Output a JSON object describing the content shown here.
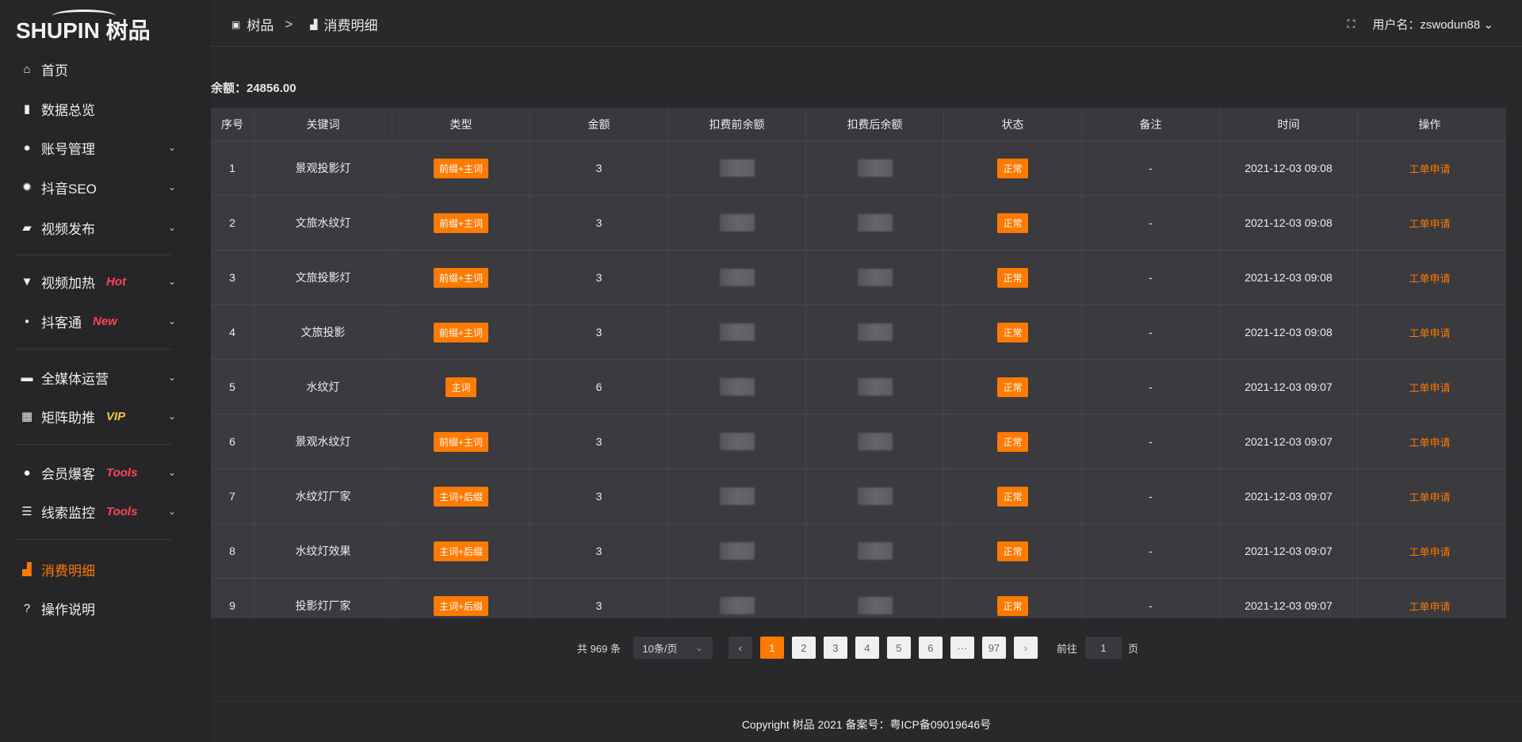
{
  "logo": {
    "text": "SHUPIN 树品"
  },
  "sidebar": {
    "items": [
      {
        "label": "首页",
        "icon": "home-icon",
        "glyph": "⌂"
      },
      {
        "label": "数据总览",
        "icon": "bar-chart-icon",
        "glyph": "▮"
      },
      {
        "label": "账号管理",
        "icon": "user-icon",
        "glyph": "●",
        "expandable": true
      },
      {
        "label": "抖音SEO",
        "icon": "gear-icon",
        "glyph": "✹",
        "expandable": true
      },
      {
        "label": "视频发布",
        "icon": "video-icon",
        "glyph": "▰",
        "expandable": true
      },
      {
        "label": "视频加热",
        "icon": "easel-icon",
        "glyph": "▼",
        "badge": "Hot",
        "badge_color": "#ff4457",
        "expandable": true
      },
      {
        "label": "抖客通",
        "icon": "chat-icon",
        "glyph": "▪",
        "badge": "New",
        "badge_color": "#ff4457",
        "expandable": true
      },
      {
        "label": "全媒体运营",
        "icon": "monitor-icon",
        "glyph": "▬",
        "expandable": true
      },
      {
        "label": "矩阵助推",
        "icon": "grid-icon",
        "glyph": "▦",
        "badge": "VIP",
        "badge_color": "#f7c24d",
        "expandable": true
      },
      {
        "label": "会员爆客",
        "icon": "user-icon",
        "glyph": "●",
        "badge": "Tools",
        "badge_color": "#ff4457",
        "expandable": true
      },
      {
        "label": "线索监控",
        "icon": "sliders-icon",
        "glyph": "☰",
        "badge": "Tools",
        "badge_color": "#ff4457",
        "expandable": true
      },
      {
        "label": "消费明细",
        "icon": "wallet-icon",
        "glyph": "▟",
        "active": true
      },
      {
        "label": "操作说明",
        "icon": "question-icon",
        "glyph": "?"
      }
    ]
  },
  "header": {
    "breadcrumb": [
      {
        "label": "树品",
        "icon": "chart-icon"
      },
      {
        "label": "消费明细",
        "icon": "wallet-icon"
      }
    ],
    "separator": ">",
    "username_label": "用户名：zswodun88"
  },
  "balance": "余额：24856.00",
  "table": {
    "columns": [
      "序号",
      "关键词",
      "类型",
      "金额",
      "扣费前余额",
      "扣费后余额",
      "状态",
      "备注",
      "时间",
      "操作"
    ],
    "rows": [
      {
        "no": "1",
        "keyword": "景观投影灯",
        "type": "前缀+主词",
        "amount": "3",
        "status": "正常",
        "note": "-",
        "time": "2021-12-03 09:08",
        "action": "工单申请"
      },
      {
        "no": "2",
        "keyword": "文旅水纹灯",
        "type": "前缀+主词",
        "amount": "3",
        "status": "正常",
        "note": "-",
        "time": "2021-12-03 09:08",
        "action": "工单申请"
      },
      {
        "no": "3",
        "keyword": "文旅投影灯",
        "type": "前缀+主词",
        "amount": "3",
        "status": "正常",
        "note": "-",
        "time": "2021-12-03 09:08",
        "action": "工单申请"
      },
      {
        "no": "4",
        "keyword": "文旅投影",
        "type": "前缀+主词",
        "amount": "3",
        "status": "正常",
        "note": "-",
        "time": "2021-12-03 09:08",
        "action": "工单申请"
      },
      {
        "no": "5",
        "keyword": "水纹灯",
        "type": "主词",
        "amount": "6",
        "status": "正常",
        "note": "-",
        "time": "2021-12-03 09:07",
        "action": "工单申请"
      },
      {
        "no": "6",
        "keyword": "景观水纹灯",
        "type": "前缀+主词",
        "amount": "3",
        "status": "正常",
        "note": "-",
        "time": "2021-12-03 09:07",
        "action": "工单申请"
      },
      {
        "no": "7",
        "keyword": "水纹灯厂家",
        "type": "主词+后缀",
        "amount": "3",
        "status": "正常",
        "note": "-",
        "time": "2021-12-03 09:07",
        "action": "工单申请"
      },
      {
        "no": "8",
        "keyword": "水纹灯效果",
        "type": "主词+后缀",
        "amount": "3",
        "status": "正常",
        "note": "-",
        "time": "2021-12-03 09:07",
        "action": "工单申请"
      },
      {
        "no": "9",
        "keyword": "投影灯厂家",
        "type": "主词+后缀",
        "amount": "3",
        "status": "正常",
        "note": "-",
        "time": "2021-12-03 09:07",
        "action": "工单申请"
      }
    ]
  },
  "pagination": {
    "total": "共 969 条",
    "page_size": "10条/页",
    "pages": [
      "1",
      "2",
      "3",
      "4",
      "5",
      "6",
      "···",
      "97"
    ],
    "current": "1",
    "goto_label": "前往",
    "goto_value": "1",
    "page_unit": "页"
  },
  "footer": "Copyright 树品 2021 备案号：粤ICP备09019646号",
  "colors": {
    "accent": "#ff7a00",
    "background": "#29292c",
    "table": "#3a3a3f"
  }
}
